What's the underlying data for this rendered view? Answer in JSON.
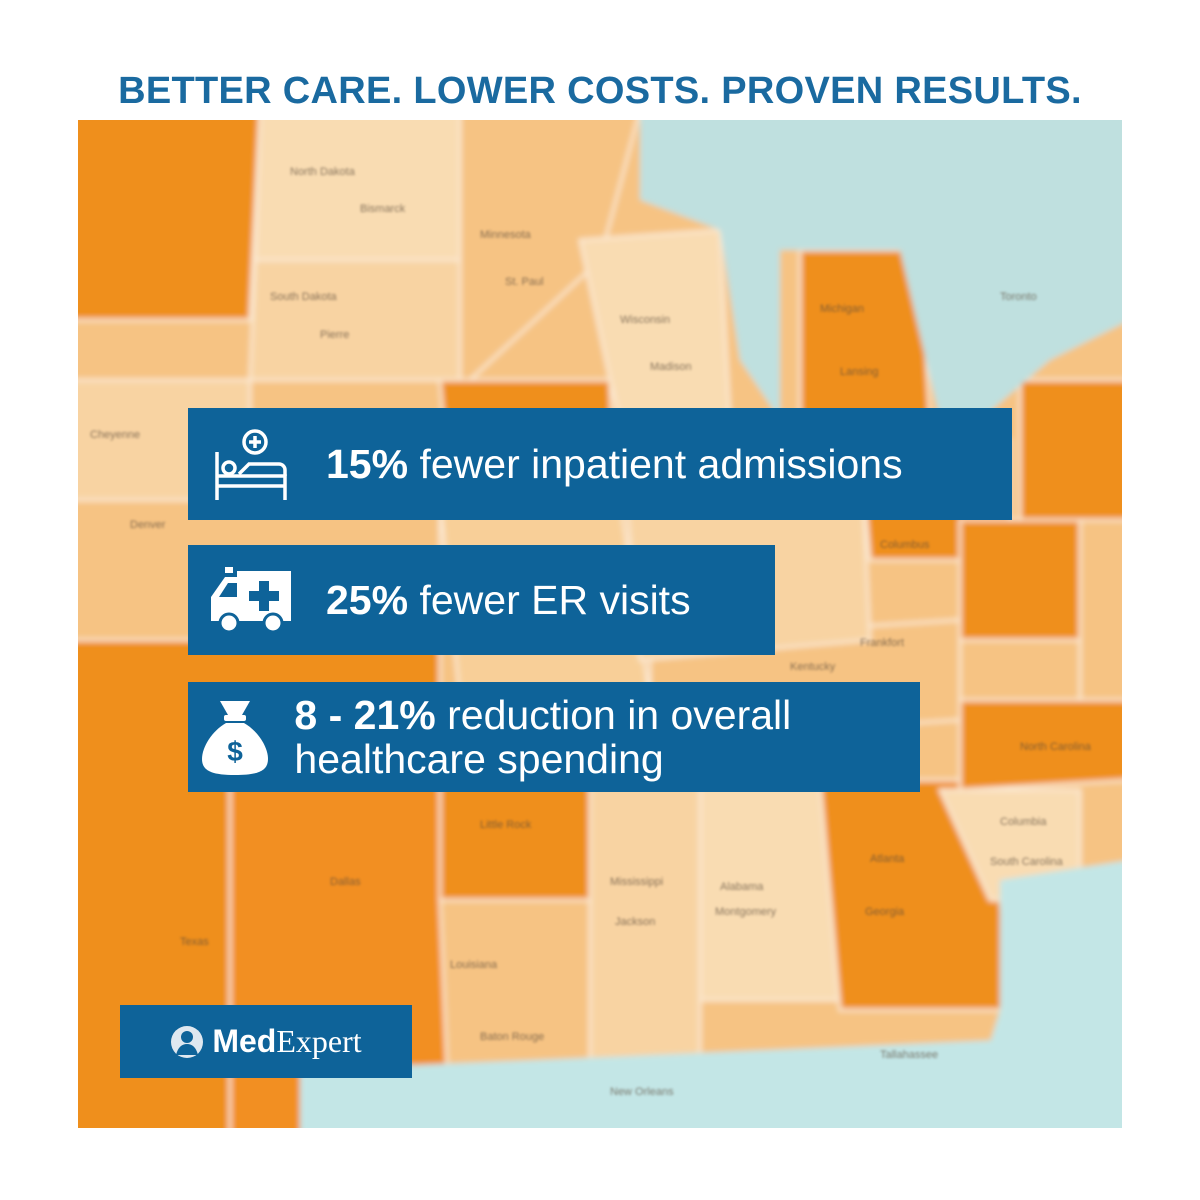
{
  "header": {
    "title": "BETTER CARE. LOWER COSTS. PROVEN RESULTS."
  },
  "stats": [
    {
      "figure": "15%",
      "text": "fewer inpatient admissions"
    },
    {
      "figure": "25%",
      "text": "fewer ER visits"
    },
    {
      "figure": "8 - 21%",
      "text": "reduction in overall healthcare spending"
    }
  ],
  "logo": {
    "bold": "Med",
    "regular": "Expert"
  },
  "map": {
    "labels": [
      "North Dakota",
      "Bismarck",
      "Minnesota",
      "South Dakota",
      "Pierre",
      "St. Paul",
      "Wisconsin",
      "Madison",
      "Michigan",
      "Lansing",
      "Toronto",
      "Cheyenne",
      "Denver",
      "Columbus",
      "Frankfort",
      "Kentucky",
      "Little Rock",
      "Mississippi",
      "Jackson",
      "Alabama",
      "Montgomery",
      "Atlanta",
      "Georgia",
      "Columbia",
      "South Carolina",
      "Dallas",
      "Texas",
      "Louisiana",
      "Baton Rouge",
      "New Orleans",
      "Tallahassee",
      "North Carolina"
    ]
  }
}
